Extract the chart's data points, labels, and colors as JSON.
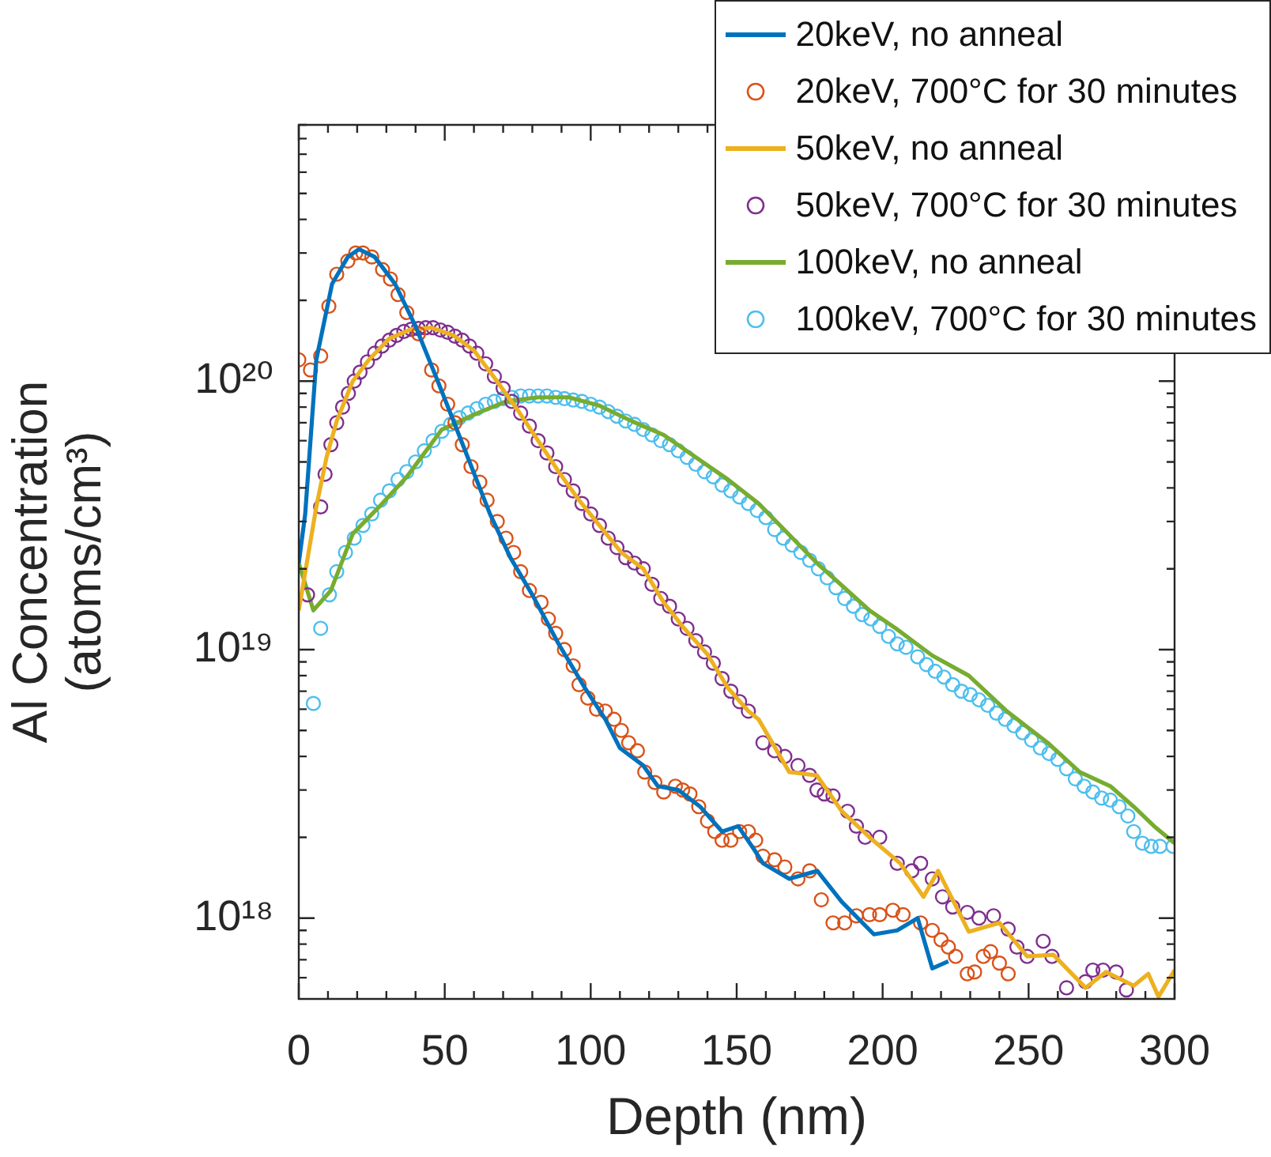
{
  "chart_data": {
    "type": "line",
    "xlabel": "Depth (nm)",
    "ylabel": "Al Concentration (atoms/cm³)",
    "log": "y",
    "xlim": [
      0,
      300
    ],
    "ylim": [
      5e+17,
      9e+20
    ],
    "xticks": [
      0,
      {
        "value": 10,
        "label": null
      },
      {
        "value": 20,
        "label": null
      },
      {
        "value": 30,
        "label": null
      },
      {
        "value": 40,
        "label": null
      },
      50,
      {
        "value": 60,
        "label": null
      },
      {
        "value": 70,
        "label": null
      },
      {
        "value": 80,
        "label": null
      },
      {
        "value": 90,
        "label": null
      },
      100,
      {
        "value": 110,
        "label": null
      },
      {
        "value": 120,
        "label": null
      },
      {
        "value": 130,
        "label": null
      },
      {
        "value": 140,
        "label": null
      },
      150,
      {
        "value": 160,
        "label": null
      },
      {
        "value": 170,
        "label": null
      },
      {
        "value": 180,
        "label": null
      },
      {
        "value": 190,
        "label": null
      },
      200,
      {
        "value": 210,
        "label": null
      },
      {
        "value": 220,
        "label": null
      },
      {
        "value": 230,
        "label": null
      },
      {
        "value": 240,
        "label": null
      },
      250,
      {
        "value": 260,
        "label": null
      },
      {
        "value": 270,
        "label": null
      },
      {
        "value": 280,
        "label": null
      },
      {
        "value": 290,
        "label": null
      },
      300
    ],
    "yticks": [
      {
        "value": 6e+17,
        "label": null
      },
      {
        "value": 7e+17,
        "label": null
      },
      {
        "value": 8e+17,
        "label": null
      },
      {
        "value": 9e+17,
        "label": null
      },
      {
        "value": 1e+18,
        "label": "10¹⁸"
      },
      {
        "value": 2e+18,
        "label": null
      },
      {
        "value": 3e+18,
        "label": null
      },
      {
        "value": 4e+18,
        "label": null
      },
      {
        "value": 5e+18,
        "label": null
      },
      {
        "value": 6e+18,
        "label": null
      },
      {
        "value": 7e+18,
        "label": null
      },
      {
        "value": 8e+18,
        "label": null
      },
      {
        "value": 9e+18,
        "label": null
      },
      {
        "value": 1e+19,
        "label": "10¹⁹"
      },
      {
        "value": 2e+19,
        "label": null
      },
      {
        "value": 3e+19,
        "label": null
      },
      {
        "value": 4e+19,
        "label": null
      },
      {
        "value": 5e+19,
        "label": null
      },
      {
        "value": 6e+19,
        "label": null
      },
      {
        "value": 7e+19,
        "label": null
      },
      {
        "value": 8e+19,
        "label": null
      },
      {
        "value": 9e+19,
        "label": null
      },
      {
        "value": 1e+20,
        "label": "10²⁰"
      },
      {
        "value": 2e+20,
        "label": null
      },
      {
        "value": 3e+20,
        "label": null
      },
      {
        "value": 4e+20,
        "label": null
      },
      {
        "value": 5e+20,
        "label": null
      },
      {
        "value": 6e+20,
        "label": null
      },
      {
        "value": 7e+20,
        "label": null
      },
      {
        "value": 8e+20,
        "label": null
      },
      {
        "value": 9e+20,
        "label": null
      }
    ],
    "grid": false,
    "legend": "top right",
    "series": [
      {
        "name": "20keV, no anneal",
        "type": "line",
        "color": "#0072bd",
        "x": [
          0,
          2.2,
          6,
          11.4,
          16.8,
          20.6,
          26,
          33,
          40,
          47.6,
          53,
          58.5,
          65.5,
          72.5,
          80,
          89,
          98,
          105,
          110,
          118,
          123,
          130,
          137.5,
          145,
          150.5,
          156,
          159,
          168,
          177.6,
          186,
          197,
          205,
          212,
          217,
          222.5
        ],
        "values": [
          2.1e+19,
          3.2e+19,
          1.2e+20,
          2.3e+20,
          2.9e+20,
          3.1e+20,
          2.9e+20,
          2.3e+20,
          1.6e+20,
          1e+20,
          7.1e+19,
          5e+19,
          3.2e+19,
          2.2e+19,
          1.6e+19,
          1.05e+19,
          7.2e+18,
          5.5e+18,
          4.3e+18,
          3.7e+18,
          3.1e+18,
          3e+18,
          2.6e+18,
          2.1e+18,
          2.2e+18,
          1.8e+18,
          1.6e+18,
          1.4e+18,
          1.5e+18,
          1.15e+18,
          8.7e+17,
          9e+17,
          1e+18,
          6.5e+17,
          6.9e+17
        ]
      },
      {
        "name": "20keV, 700°C for 30 minutes",
        "type": "scatter",
        "marker": "circle",
        "color": "#d95319",
        "x": [
          0,
          4,
          7.5,
          10.3,
          13,
          16.8,
          19.5,
          22,
          25,
          28.7,
          31.4,
          34,
          37,
          41,
          45.5,
          48,
          51,
          53.5,
          56,
          59,
          62,
          64.5,
          68,
          71,
          73.6,
          76,
          79,
          83,
          85.5,
          88,
          91,
          94,
          96,
          99,
          102,
          105,
          108,
          110.5,
          113,
          116,
          118.5,
          122,
          125,
          129,
          131.5,
          134,
          137,
          140,
          142.5,
          145,
          148,
          151,
          154,
          156.5,
          159,
          163,
          166.5,
          171,
          175,
          179,
          183,
          187,
          191,
          195.5,
          199,
          203.5,
          207,
          213,
          217,
          220,
          222.5,
          225,
          229,
          231.5,
          234.5,
          237,
          240,
          243
        ],
        "values": [
          1.2e+20,
          1.1e+20,
          1.24e+20,
          1.9e+20,
          2.5e+20,
          2.8e+20,
          3e+20,
          3e+20,
          2.9e+20,
          2.6e+20,
          2.4e+20,
          2.1e+20,
          1.8e+20,
          1.5e+20,
          1.1e+20,
          9.6e+19,
          8.2e+19,
          7e+19,
          5.8e+19,
          4.8e+19,
          4.2e+19,
          3.6e+19,
          3e+19,
          2.6e+19,
          2.3e+19,
          1.95e+19,
          1.66e+19,
          1.5e+19,
          1.3e+19,
          1.15e+19,
          1e+19,
          8.7e+18,
          7.4e+18,
          6.6e+18,
          6e+18,
          5.9e+18,
          5.5e+18,
          5e+18,
          4.5e+18,
          4.2e+18,
          3.5e+18,
          3.2e+18,
          2.95e+18,
          3.1e+18,
          3e+18,
          2.9e+18,
          2.6e+18,
          2.3e+18,
          2.1e+18,
          1.95e+18,
          1.95e+18,
          2.1e+18,
          2.1e+18,
          1.95e+18,
          1.7e+18,
          1.65e+18,
          1.55e+18,
          1.4e+18,
          1.5e+18,
          1.17e+18,
          9.6e+17,
          9.6e+17,
          1.02e+18,
          1.03e+18,
          1.03e+18,
          1.07e+18,
          1.03e+18,
          9.6e+17,
          9e+17,
          8.3e+17,
          7.8e+17,
          7.2e+17,
          6.2e+17,
          6.3e+17,
          7.2e+17,
          7.5e+17,
          6.8e+17,
          6.2e+17
        ]
      },
      {
        "name": "50keV, no anneal",
        "type": "line",
        "color": "#edb120",
        "x": [
          0,
          6,
          9.5,
          13,
          18.5,
          24,
          31,
          38.5,
          45.5,
          53,
          60,
          67,
          75,
          82,
          89,
          96,
          103,
          110.5,
          118,
          125,
          132,
          140,
          147,
          154,
          157.5,
          168,
          177.5,
          186,
          195.5,
          206,
          214,
          219,
          229.5,
          240,
          249.5,
          258.5,
          269.5,
          276.5,
          286,
          291,
          294.5,
          300
        ],
        "values": [
          1.4e+19,
          3.4e+19,
          5.2e+19,
          7.1e+19,
          1e+20,
          1.2e+20,
          1.44e+20,
          1.56e+20,
          1.58e+20,
          1.48e+20,
          1.3e+20,
          1.03e+20,
          7.8e+19,
          6e+19,
          4.6e+19,
          3.6e+19,
          2.9e+19,
          2.3e+19,
          2e+19,
          1.5e+19,
          1.2e+19,
          9.6e+18,
          7.2e+18,
          5.9e+18,
          5.5e+18,
          3.5e+18,
          3.4e+18,
          2.5e+18,
          2e+18,
          1.6e+18,
          1.2e+18,
          1.5e+18,
          8.9e+17,
          9.6e+17,
          7.2e+17,
          7.3e+17,
          5.5e+17,
          6.3e+17,
          5.6e+17,
          6.2e+17,
          5.1e+17,
          6.4e+17
        ]
      },
      {
        "name": "50keV, 700°C for 30 minutes",
        "type": "scatter",
        "marker": "circle",
        "color": "#7e2f8e",
        "x": [
          3,
          7.5,
          9,
          11,
          13,
          15,
          17,
          19,
          21,
          23.5,
          26,
          28.5,
          31,
          33.5,
          36,
          38.5,
          41,
          43.5,
          46,
          48.5,
          51,
          53.5,
          56,
          58.5,
          61,
          64,
          67,
          70,
          73,
          76,
          79,
          82,
          85,
          88,
          91,
          94,
          97,
          100,
          103,
          106,
          109,
          112,
          115,
          118,
          121,
          124,
          127,
          130,
          133,
          136,
          139,
          142,
          145,
          148,
          151,
          154,
          159,
          163,
          166.5,
          171,
          175,
          177.5,
          180,
          183,
          188,
          191,
          194,
          199,
          205,
          210,
          213,
          217,
          220.5,
          224,
          229,
          233,
          238,
          243,
          246,
          249.5,
          255,
          258,
          263,
          269.5,
          272,
          275.5,
          280,
          283.5
        ],
        "values": [
          1.6e+19,
          3.4e+19,
          4.5e+19,
          5.8e+19,
          7e+19,
          8e+19,
          9e+19,
          1e+20,
          1.08e+20,
          1.18e+20,
          1.27e+20,
          1.35e+20,
          1.42e+20,
          1.48e+20,
          1.53e+20,
          1.56e+20,
          1.57e+20,
          1.58e+20,
          1.58e+20,
          1.55e+20,
          1.52e+20,
          1.47e+20,
          1.42e+20,
          1.35e+20,
          1.27e+20,
          1.16e+20,
          1.04e+20,
          9.4e+19,
          8.4e+19,
          7.6e+19,
          6.8e+19,
          6e+19,
          5.4e+19,
          4.8e+19,
          4.3e+19,
          3.9e+19,
          3.5e+19,
          3.2e+19,
          2.9e+19,
          2.6e+19,
          2.4e+19,
          2.2e+19,
          2.1e+19,
          2e+19,
          1.75e+19,
          1.55e+19,
          1.45e+19,
          1.3e+19,
          1.2e+19,
          1.08e+19,
          9.8e+18,
          8.9e+18,
          7.8e+18,
          7e+18,
          6.4e+18,
          5.9e+18,
          4.5e+18,
          4.2e+18,
          4e+18,
          3.7e+18,
          3.4e+18,
          3e+18,
          2.9e+18,
          2.85e+18,
          2.5e+18,
          2.2e+18,
          2e+18,
          2e+18,
          1.6e+18,
          1.5e+18,
          1.6e+18,
          1.4e+18,
          1.2e+18,
          1.1e+18,
          1.05e+18,
          1e+18,
          1.02e+18,
          9.1e+17,
          7.8e+17,
          7.2e+17,
          8.2e+17,
          7.2e+17,
          5.5e+17,
          5.8e+17,
          6.4e+17,
          6.4e+17,
          6.3e+17,
          5.4e+17
        ]
      },
      {
        "name": "100keV, no anneal",
        "type": "line",
        "color": "#77ac30",
        "x": [
          0,
          5,
          11,
          18.5,
          27.5,
          37,
          49,
          60,
          71,
          82,
          92.5,
          103,
          114,
          125,
          136,
          147,
          157.5,
          177.5,
          195.5,
          204.5,
          217,
          229.5,
          242.5,
          256.5,
          267.5,
          278,
          286,
          293,
          300
        ],
        "values": [
          2.1e+19,
          1.4e+19,
          1.66e+19,
          2.7e+19,
          3.4e+19,
          4.4e+19,
          6.6e+19,
          7.5e+19,
          8.4e+19,
          8.7e+19,
          8.7e+19,
          8.1e+19,
          7.1e+19,
          6.3e+19,
          5.2e+19,
          4.3e+19,
          3.5e+19,
          2.1e+19,
          1.4e+19,
          1.2e+19,
          9.5e+18,
          8e+18,
          5.9e+18,
          4.5e+18,
          3.5e+18,
          3.1e+18,
          2.6e+18,
          2.2e+18,
          1.9e+18
        ]
      },
      {
        "name": "100keV, 700°C for 30 minutes",
        "type": "scatter",
        "marker": "circle",
        "color": "#4dbeee",
        "x": [
          5,
          7.5,
          10.5,
          13,
          16,
          19,
          22,
          25,
          28,
          31,
          34,
          37,
          40,
          43,
          46,
          49,
          52,
          55,
          58,
          61,
          64,
          67,
          70,
          73,
          76,
          79,
          82,
          85,
          88,
          91,
          94,
          97,
          100,
          103,
          106,
          109,
          112,
          115,
          118,
          121,
          124,
          127,
          130,
          133,
          136,
          139,
          142,
          145,
          148,
          151,
          154,
          157,
          160,
          163,
          166,
          169,
          172,
          175,
          178,
          181,
          184,
          187,
          190,
          193,
          196,
          199,
          202,
          205,
          208,
          212,
          215,
          218,
          221,
          224,
          227,
          230,
          233,
          236,
          239,
          242,
          245,
          248,
          251,
          254,
          257,
          260,
          263,
          266,
          269,
          272,
          275,
          278,
          281,
          284,
          286,
          289,
          292,
          295,
          299.5
        ],
        "values": [
          6.3e+18,
          1.2e+19,
          1.6e+19,
          1.95e+19,
          2.3e+19,
          2.6e+19,
          2.9e+19,
          3.2e+19,
          3.6e+19,
          3.9e+19,
          4.3e+19,
          4.6e+19,
          5e+19,
          5.5e+19,
          6e+19,
          6.5e+19,
          6.9e+19,
          7.3e+19,
          7.6e+19,
          7.9e+19,
          8.2e+19,
          8.4e+19,
          8.6e+19,
          8.7e+19,
          8.8e+19,
          8.8e+19,
          8.8e+19,
          8.8e+19,
          8.7e+19,
          8.6e+19,
          8.5e+19,
          8.4e+19,
          8.2e+19,
          8e+19,
          7.7e+19,
          7.4e+19,
          7.1e+19,
          6.9e+19,
          6.6e+19,
          6.3e+19,
          6e+19,
          5.8e+19,
          5.5e+19,
          5.2e+19,
          4.9e+19,
          4.6e+19,
          4.4e+19,
          4.1e+19,
          3.9e+19,
          3.7e+19,
          3.5e+19,
          3.3e+19,
          3.1e+19,
          2.8e+19,
          2.6e+19,
          2.45e+19,
          2.3e+19,
          2.15e+19,
          2e+19,
          1.85e+19,
          1.7e+19,
          1.55e+19,
          1.45e+19,
          1.35e+19,
          1.3e+19,
          1.22e+19,
          1.12e+19,
          1.05e+19,
          1.02e+19,
          9.4e+18,
          8.8e+18,
          8.3e+18,
          7.9e+18,
          7.4e+18,
          7e+18,
          6.8e+18,
          6.5e+18,
          6.2e+18,
          5.8e+18,
          5.5e+18,
          5.2e+18,
          4.9e+18,
          4.6e+18,
          4.3e+18,
          4.1e+18,
          3.9e+18,
          3.6e+18,
          3.3e+18,
          3.1e+18,
          2.95e+18,
          2.8e+18,
          2.75e+18,
          2.6e+18,
          2.4e+18,
          2.1e+18,
          1.9e+18,
          1.85e+18,
          1.85e+18,
          1.85e+18
        ]
      }
    ]
  }
}
